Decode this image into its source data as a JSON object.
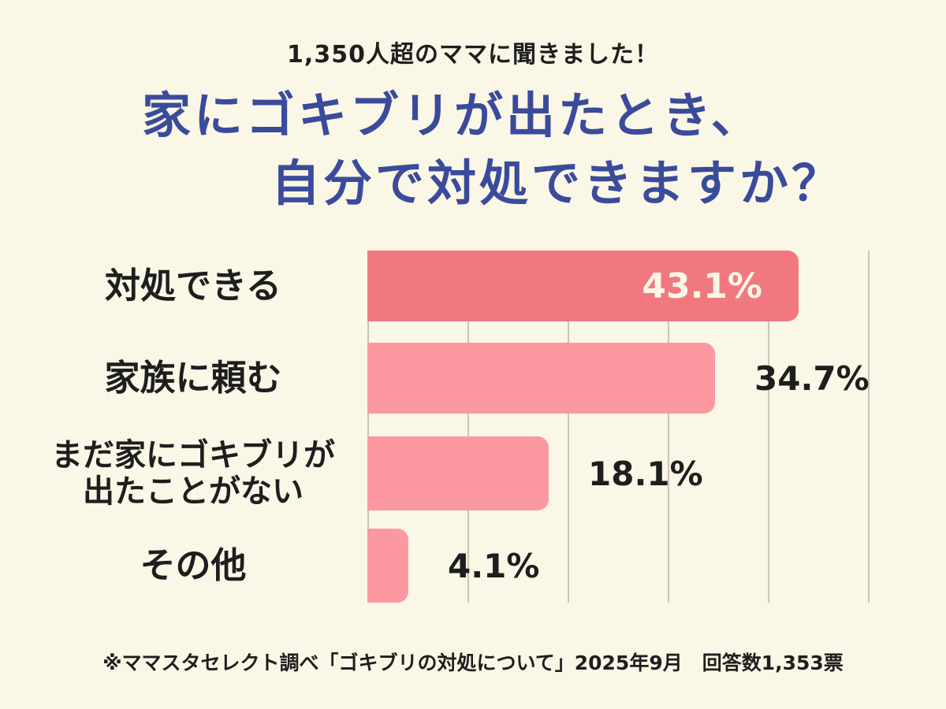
{
  "page": {
    "background_color": "#FAF7E7"
  },
  "header": {
    "subtitle": "1,350人超のママに聞きました！",
    "title_line1": "家にゴキブリが出たとき、",
    "title_line2": "自分で対処できますか？",
    "title_color": "#3B4B9B",
    "text_color": "#1E1E1E"
  },
  "chart_data": {
    "type": "bar",
    "orientation": "horizontal",
    "title": "家にゴキブリが出たとき、自分で対処できますか？",
    "categories": [
      "対処できる",
      "家族に頼む",
      "まだ家にゴキブリが出たことがない",
      "その他"
    ],
    "values": [
      43.1,
      34.7,
      18.1,
      4.1
    ],
    "xlim": [
      0,
      50
    ],
    "grid": true,
    "gridline_interval_pct": 10,
    "gridline_color": "#C9C6B6",
    "rows": [
      {
        "label_lines": [
          "対処できる"
        ],
        "value": 43.1,
        "value_label": "43.1%",
        "bar_color": "#F1787F",
        "value_label_inside": true,
        "value_label_color": "#FBF7E6"
      },
      {
        "label_lines": [
          "家族に頼む"
        ],
        "value": 34.7,
        "value_label": "34.7%",
        "bar_color": "#FC99A0",
        "value_label_inside": false,
        "value_label_color": "#1E1E1E"
      },
      {
        "label_lines": [
          "まだ家にゴキブリが",
          "出たことがない"
        ],
        "value": 18.1,
        "value_label": "18.1%",
        "bar_color": "#FC99A0",
        "value_label_inside": false,
        "value_label_color": "#1E1E1E"
      },
      {
        "label_lines": [
          "その他"
        ],
        "value": 4.1,
        "value_label": "4.1%",
        "bar_color": "#FC99A0",
        "value_label_inside": false,
        "value_label_color": "#1E1E1E"
      }
    ]
  },
  "footer": {
    "source": "※ママスタセレクト調べ「ゴキブリの対処について」2025年9月　回答数1,353票"
  }
}
